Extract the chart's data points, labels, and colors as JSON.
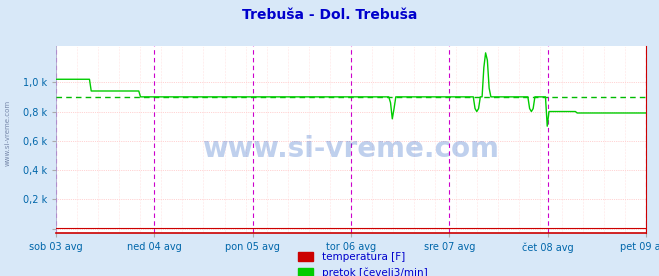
{
  "title": "Trebuša - Dol. Trebuša",
  "title_color": "#0000cc",
  "bg_color": "#d8e8f8",
  "plot_bg_color": "#ffffff",
  "ylabel_color": "#0066aa",
  "xlabel_color": "#0066aa",
  "watermark": "www.si-vreme.com",
  "x_labels": [
    "sob 03 avg",
    "ned 04 avg",
    "pon 05 avg",
    "tor 06 avg",
    "sre 07 avg",
    "čet 08 avg",
    "pet 09 avg"
  ],
  "y_values": [
    0,
    200,
    400,
    600,
    800,
    1000
  ],
  "y_tick_labels": [
    "",
    "0,2 k",
    "0,4 k",
    "0,6 k",
    "0,8 k",
    "1,0 k"
  ],
  "ymax": 1250,
  "ymin": -30,
  "grid_color_h": "#ffaaaa",
  "grid_color_v": "#ffcccc",
  "dashed_line_value": 900,
  "dashed_line_color": "#00bb00",
  "flow_color": "#00cc00",
  "temp_color": "#cc0000",
  "vline_color": "#cc00cc",
  "bottom_line_color": "#cc0000",
  "legend_temp_label": "temperatura [F]",
  "legend_flow_label": "pretok [čevelj3/min]",
  "legend_temp_color": "#cc0000",
  "legend_flow_color": "#00cc00",
  "n_points": 336,
  "flow_data": [
    1020,
    1020,
    1020,
    1020,
    1020,
    1020,
    1020,
    1020,
    1020,
    1020,
    1020,
    1020,
    1020,
    1020,
    1020,
    1020,
    1020,
    1020,
    1020,
    1020,
    940,
    940,
    940,
    940,
    940,
    940,
    940,
    940,
    940,
    940,
    940,
    940,
    940,
    940,
    940,
    940,
    940,
    940,
    940,
    940,
    940,
    940,
    940,
    940,
    940,
    940,
    940,
    940,
    900,
    900,
    900,
    900,
    900,
    900,
    900,
    900,
    900,
    900,
    900,
    900,
    900,
    900,
    900,
    900,
    900,
    900,
    900,
    900,
    900,
    900,
    900,
    900,
    900,
    900,
    900,
    900,
    900,
    900,
    900,
    900,
    900,
    900,
    900,
    900,
    900,
    900,
    900,
    900,
    900,
    900,
    900,
    900,
    900,
    900,
    900,
    900,
    900,
    900,
    900,
    900,
    900,
    900,
    900,
    900,
    900,
    900,
    900,
    900,
    900,
    900,
    900,
    900,
    900,
    900,
    900,
    900,
    900,
    900,
    900,
    900,
    900,
    900,
    900,
    900,
    900,
    900,
    900,
    900,
    900,
    900,
    900,
    900,
    900,
    900,
    900,
    900,
    900,
    900,
    900,
    900,
    900,
    900,
    900,
    900,
    900,
    900,
    900,
    900,
    900,
    900,
    900,
    900,
    900,
    900,
    900,
    900,
    900,
    900,
    900,
    900,
    900,
    900,
    900,
    900,
    900,
    900,
    900,
    900,
    900,
    900,
    900,
    900,
    900,
    900,
    900,
    900,
    900,
    900,
    900,
    900,
    900,
    900,
    900,
    900,
    900,
    900,
    900,
    900,
    900,
    900,
    860,
    750,
    820,
    900,
    900,
    900,
    900,
    900,
    900,
    900,
    900,
    900,
    900,
    900,
    900,
    900,
    900,
    900,
    900,
    900,
    900,
    900,
    900,
    900,
    900,
    900,
    900,
    900,
    900,
    900,
    900,
    900,
    900,
    900,
    900,
    900,
    900,
    900,
    900,
    900,
    900,
    900,
    900,
    900,
    900,
    900,
    900,
    900,
    820,
    800,
    820,
    900,
    900,
    1100,
    1200,
    1150,
    960,
    900,
    900,
    900,
    900,
    900,
    900,
    900,
    900,
    900,
    900,
    900,
    900,
    900,
    900,
    900,
    900,
    900,
    900,
    900,
    900,
    900,
    900,
    820,
    800,
    820,
    900,
    900,
    900,
    900,
    900,
    900,
    900,
    700,
    800,
    800,
    800,
    800,
    800,
    800,
    800,
    800,
    800,
    800,
    800,
    800,
    800,
    800,
    800,
    800,
    790,
    790,
    790,
    790,
    790,
    790,
    790,
    790,
    790,
    790,
    790,
    790,
    790,
    790,
    790,
    790,
    790,
    790,
    790,
    790,
    790,
    790,
    790,
    790
  ],
  "temp_data_value": 5,
  "left_label": "www.si-vreme.com"
}
